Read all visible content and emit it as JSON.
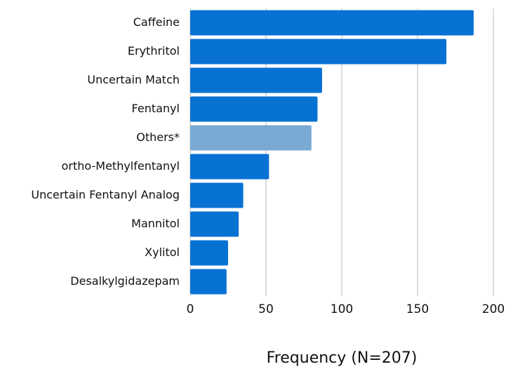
{
  "chart_data": {
    "type": "barh",
    "x_label": "Frequency (N=207)",
    "categories": [
      "Caffeine",
      "Erythritol",
      "Uncertain Match",
      "Fentanyl",
      "Others*",
      "ortho-Methylfentanyl",
      "Uncertain Fentanyl Analog",
      "Mannitol",
      "Xylitol",
      "Desalkylgidazepam"
    ],
    "values": [
      187,
      169,
      87,
      84,
      80,
      52,
      35,
      32,
      25,
      24
    ],
    "colors": [
      "#0872d3",
      "#0872d3",
      "#0872d3",
      "#0872d3",
      "#7aa9d4",
      "#0872d3",
      "#0872d3",
      "#0872d3",
      "#0872d3",
      "#0872d3"
    ],
    "xlim": [
      0,
      200
    ],
    "xticks": [
      0,
      50,
      100,
      150,
      200
    ],
    "grid": true
  }
}
